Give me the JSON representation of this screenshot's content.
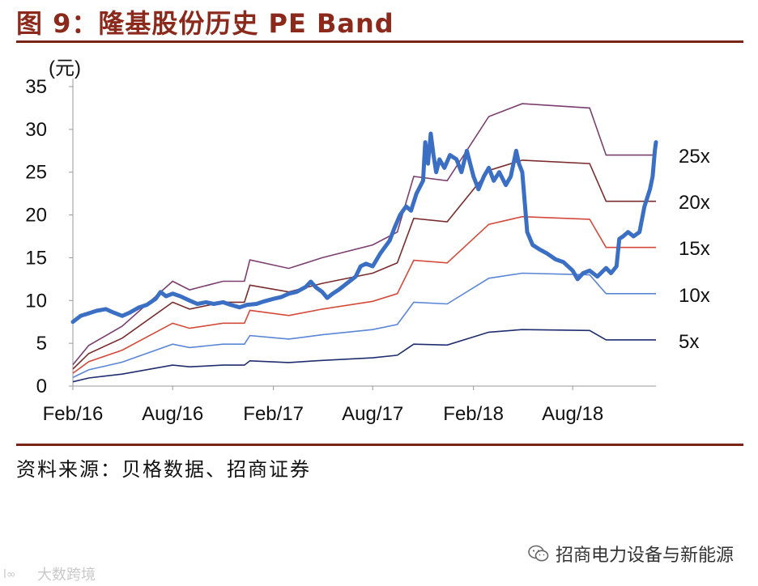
{
  "header": {
    "title": "图 9：隆基股份历史 PE Band"
  },
  "footer": {
    "source": "资料来源：贝格数据、招商证券",
    "brand": "招商电力设备与新能源",
    "watermark": "大数跨境"
  },
  "colors": {
    "title": "#8b2a1c",
    "rule": "#7a2418",
    "price": "#3a6fc4"
  },
  "chart_data": {
    "type": "line",
    "title": "图 9：隆基股份历史 PE Band",
    "ylabel": "(元)",
    "xlabel": "",
    "ylim": [
      0,
      35
    ],
    "yticks": [
      0,
      5,
      10,
      15,
      20,
      25,
      30,
      35
    ],
    "x_range": [
      "2016-02-01",
      "2018-12-31"
    ],
    "x_tick_labels": [
      {
        "label": "Feb/16",
        "date": "2016-02-01"
      },
      {
        "label": "Aug/16",
        "date": "2016-08-01"
      },
      {
        "label": "Feb/17",
        "date": "2017-02-01"
      },
      {
        "label": "Aug/17",
        "date": "2017-08-01"
      },
      {
        "label": "Feb/18",
        "date": "2018-02-01"
      },
      {
        "label": "Aug/18",
        "date": "2018-08-01"
      }
    ],
    "grid": false,
    "band_labels": [
      "25x",
      "20x",
      "15x",
      "10x",
      "5x"
    ],
    "eps_points": {
      "dates": [
        "2016-02-01",
        "2016-03-01",
        "2016-05-01",
        "2016-08-01",
        "2016-09-01",
        "2016-11-01",
        "2016-12-10",
        "2016-12-20",
        "2017-03-01",
        "2017-05-01",
        "2017-08-01",
        "2017-09-15",
        "2017-10-15",
        "2017-12-15",
        "2018-03-01",
        "2018-05-01",
        "2018-09-01",
        "2018-10-01",
        "2018-12-31"
      ],
      "values": [
        0.1,
        0.19,
        0.28,
        0.49,
        0.45,
        0.49,
        0.49,
        0.59,
        0.55,
        0.6,
        0.66,
        0.72,
        0.98,
        0.96,
        1.26,
        1.32,
        1.3,
        1.08,
        1.08
      ]
    },
    "series": [
      {
        "name": "25x",
        "color": "#7a3f6e",
        "multiplier": 25
      },
      {
        "name": "20x",
        "color": "#7a2c2c",
        "multiplier": 20
      },
      {
        "name": "15x",
        "color": "#d44a3a",
        "multiplier": 15
      },
      {
        "name": "10x",
        "color": "#5b86d6",
        "multiplier": 10
      },
      {
        "name": "5x",
        "color": "#1f2d6e",
        "multiplier": 5
      },
      {
        "name": "",
        "role": "price",
        "color": "#3a6fc4",
        "points": [
          [
            "2016-02-01",
            7.5
          ],
          [
            "2016-02-15",
            8.2
          ],
          [
            "2016-03-01",
            8.5
          ],
          [
            "2016-03-15",
            8.8
          ],
          [
            "2016-04-01",
            9.0
          ],
          [
            "2016-04-15",
            8.6
          ],
          [
            "2016-05-01",
            8.2
          ],
          [
            "2016-05-15",
            8.6
          ],
          [
            "2016-06-01",
            9.2
          ],
          [
            "2016-06-15",
            9.5
          ],
          [
            "2016-07-01",
            10.2
          ],
          [
            "2016-07-10",
            11.0
          ],
          [
            "2016-07-20",
            10.5
          ],
          [
            "2016-08-01",
            10.8
          ],
          [
            "2016-08-15",
            10.5
          ],
          [
            "2016-09-01",
            10.0
          ],
          [
            "2016-09-15",
            9.6
          ],
          [
            "2016-10-01",
            9.8
          ],
          [
            "2016-10-15",
            9.6
          ],
          [
            "2016-11-01",
            9.8
          ],
          [
            "2016-11-15",
            9.5
          ],
          [
            "2016-12-01",
            9.2
          ],
          [
            "2016-12-15",
            9.5
          ],
          [
            "2017-01-01",
            9.6
          ],
          [
            "2017-01-15",
            9.9
          ],
          [
            "2017-02-01",
            10.2
          ],
          [
            "2017-02-15",
            10.4
          ],
          [
            "2017-03-01",
            10.8
          ],
          [
            "2017-03-15",
            11.0
          ],
          [
            "2017-04-01",
            11.6
          ],
          [
            "2017-04-10",
            12.2
          ],
          [
            "2017-04-20",
            11.5
          ],
          [
            "2017-05-01",
            11.0
          ],
          [
            "2017-05-10",
            10.3
          ],
          [
            "2017-05-20",
            10.8
          ],
          [
            "2017-06-01",
            11.3
          ],
          [
            "2017-06-15",
            12.0
          ],
          [
            "2017-07-01",
            12.8
          ],
          [
            "2017-07-10",
            14.0
          ],
          [
            "2017-07-20",
            14.3
          ],
          [
            "2017-08-01",
            14.0
          ],
          [
            "2017-08-15",
            15.5
          ],
          [
            "2017-09-01",
            17.0
          ],
          [
            "2017-09-10",
            18.5
          ],
          [
            "2017-09-20",
            20.0
          ],
          [
            "2017-10-01",
            21.0
          ],
          [
            "2017-10-10",
            20.5
          ],
          [
            "2017-10-20",
            22.5
          ],
          [
            "2017-11-01",
            24.0
          ],
          [
            "2017-11-05",
            28.5
          ],
          [
            "2017-11-10",
            26.0
          ],
          [
            "2017-11-15",
            29.5
          ],
          [
            "2017-11-20",
            27.0
          ],
          [
            "2017-11-25",
            25.0
          ],
          [
            "2017-12-01",
            26.5
          ],
          [
            "2017-12-10",
            25.5
          ],
          [
            "2017-12-20",
            27.0
          ],
          [
            "2018-01-01",
            26.5
          ],
          [
            "2018-01-10",
            25.0
          ],
          [
            "2018-01-20",
            27.5
          ],
          [
            "2018-02-01",
            24.5
          ],
          [
            "2018-02-10",
            23.0
          ],
          [
            "2018-02-20",
            24.5
          ],
          [
            "2018-03-01",
            25.5
          ],
          [
            "2018-03-10",
            24.0
          ],
          [
            "2018-03-20",
            25.0
          ],
          [
            "2018-04-01",
            23.5
          ],
          [
            "2018-04-10",
            24.5
          ],
          [
            "2018-04-20",
            27.5
          ],
          [
            "2018-04-25",
            26.0
          ],
          [
            "2018-05-01",
            25.0
          ],
          [
            "2018-05-10",
            18.0
          ],
          [
            "2018-05-20",
            16.5
          ],
          [
            "2018-06-01",
            16.0
          ],
          [
            "2018-06-15",
            15.5
          ],
          [
            "2018-07-01",
            14.8
          ],
          [
            "2018-07-15",
            14.5
          ],
          [
            "2018-08-01",
            13.5
          ],
          [
            "2018-08-10",
            12.5
          ],
          [
            "2018-08-20",
            13.2
          ],
          [
            "2018-09-01",
            13.5
          ],
          [
            "2018-09-15",
            12.8
          ],
          [
            "2018-10-01",
            13.8
          ],
          [
            "2018-10-10",
            13.2
          ],
          [
            "2018-10-20",
            14.0
          ],
          [
            "2018-10-25",
            17.2
          ],
          [
            "2018-11-01",
            17.5
          ],
          [
            "2018-11-10",
            18.0
          ],
          [
            "2018-11-20",
            17.5
          ],
          [
            "2018-12-01",
            18.0
          ],
          [
            "2018-12-10",
            21.0
          ],
          [
            "2018-12-20",
            23.0
          ],
          [
            "2018-12-25",
            24.5
          ],
          [
            "2018-12-29",
            27.5
          ],
          [
            "2018-12-31",
            28.5
          ]
        ]
      }
    ]
  }
}
